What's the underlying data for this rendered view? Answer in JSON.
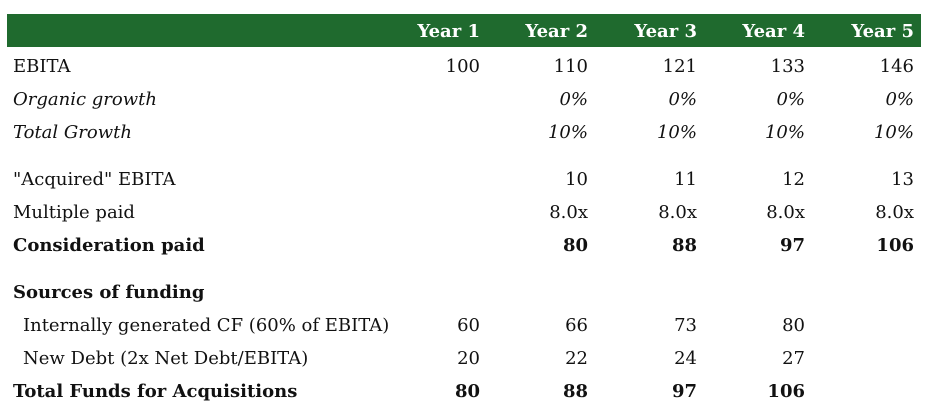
{
  "headers": [
    "Year 1",
    "Year 2",
    "Year 3",
    "Year 4",
    "Year 5"
  ],
  "rows": [
    {
      "label": "EBITA",
      "values": [
        "100",
        "110",
        "121",
        "133",
        "146"
      ]
    },
    {
      "label": "Organic growth",
      "values": [
        "",
        "0%",
        "0%",
        "0%",
        "0%"
      ]
    },
    {
      "label": "Total Growth",
      "values": [
        "",
        "10%",
        "10%",
        "10%",
        "10%"
      ]
    },
    {
      "label": "\"Acquired\" EBITA",
      "values": [
        "",
        "10",
        "11",
        "12",
        "13"
      ]
    },
    {
      "label": "Multiple paid",
      "values": [
        "",
        "8.0x",
        "8.0x",
        "8.0x",
        "8.0x"
      ]
    },
    {
      "label": "Consideration paid",
      "values": [
        "",
        "80",
        "88",
        "97",
        "106"
      ]
    },
    {
      "label": "Sources of funding",
      "values": [
        "",
        "",
        "",
        "",
        ""
      ]
    },
    {
      "label": "Internally generated CF (60% of EBITA)",
      "values": [
        "60",
        "66",
        "73",
        "80",
        ""
      ]
    },
    {
      "label": "New Debt (2x Net Debt/EBITA)",
      "values": [
        "20",
        "22",
        "24",
        "27",
        ""
      ]
    },
    {
      "label": "Total Funds for Acquisitions",
      "values": [
        "80",
        "88",
        "97",
        "106",
        ""
      ]
    }
  ]
}
